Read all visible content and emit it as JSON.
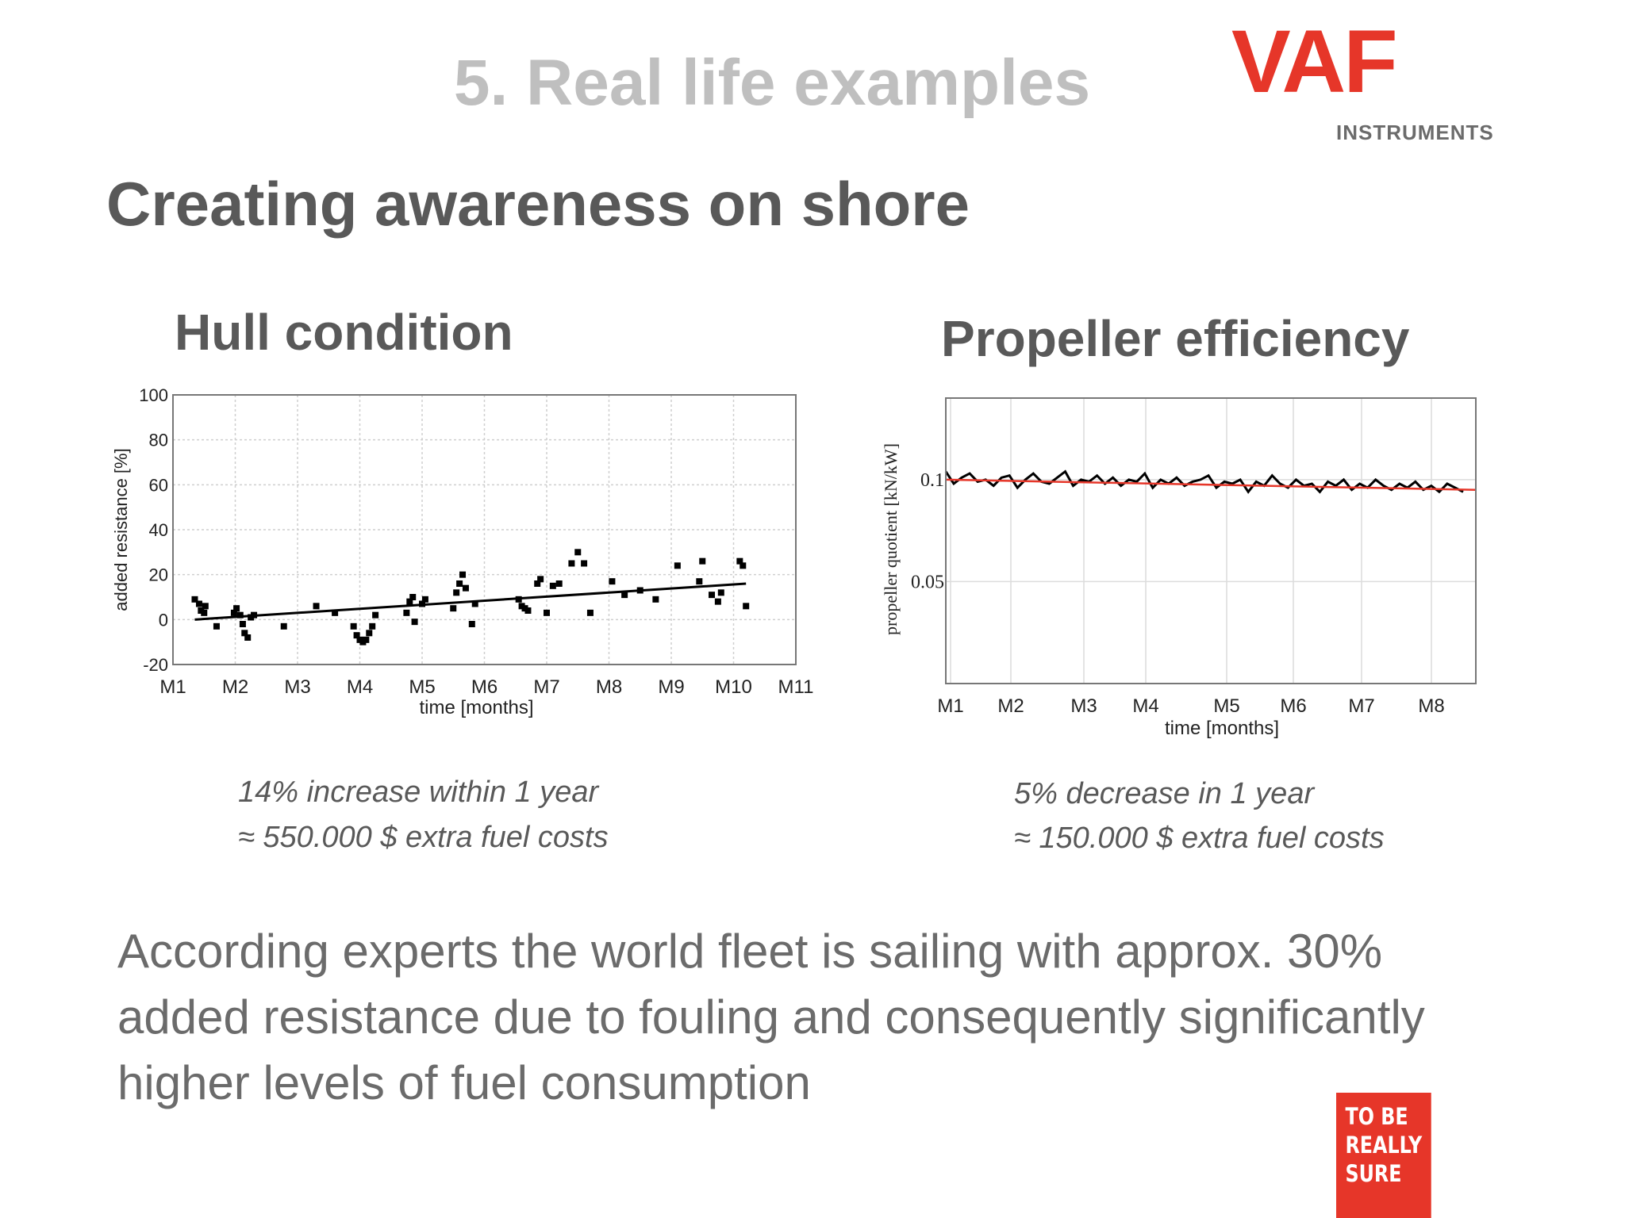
{
  "header": {
    "section_title": "5. Real life examples",
    "logo_name": "VAF",
    "logo_sub": "INSTRUMENTS"
  },
  "slide_title": "Creating awareness on shore",
  "hull": {
    "heading": "Hull condition",
    "caption_line1": "14% increase within 1 year",
    "caption_line2": "≈ 550.000 $ extra fuel costs"
  },
  "propeller": {
    "heading": "Propeller efficiency",
    "caption_line1": "5% decrease in 1 year",
    "caption_line2": "≈ 150.000 $ extra fuel costs"
  },
  "footer_text": "According experts the world fleet is sailing with approx. 30% added resistance due to fouling and consequently significantly higher levels of fuel consumption",
  "badge": {
    "line1": "TO BE",
    "line2": "REALLY",
    "line3": "SURE",
    "color": "#e63629"
  },
  "colors": {
    "accent": "#e63629",
    "text": "#595959",
    "title_grey": "#bfbfbf"
  },
  "chart_data": [
    {
      "type": "scatter",
      "title": "Hull condition",
      "xlabel": "time [months]",
      "ylabel": "added resistance [%]",
      "x_ticks": [
        "M1",
        "M2",
        "M3",
        "M4",
        "M5",
        "M6",
        "M7",
        "M8",
        "M9",
        "M10",
        "M11"
      ],
      "xlim": [
        1,
        11
      ],
      "ylim": [
        -20,
        100
      ],
      "y_ticks": [
        100,
        80,
        60,
        40,
        20,
        0,
        -20
      ],
      "grid": true,
      "trend": {
        "x": [
          1.35,
          10.2
        ],
        "y": [
          0,
          16
        ]
      },
      "points": [
        [
          1.35,
          9
        ],
        [
          1.42,
          7
        ],
        [
          1.45,
          4
        ],
        [
          1.5,
          3
        ],
        [
          1.52,
          6
        ],
        [
          1.7,
          -3
        ],
        [
          1.98,
          3
        ],
        [
          2.02,
          5
        ],
        [
          2.08,
          2
        ],
        [
          2.12,
          -2
        ],
        [
          2.15,
          -6
        ],
        [
          2.2,
          -8
        ],
        [
          2.25,
          1
        ],
        [
          2.3,
          2
        ],
        [
          2.78,
          -3
        ],
        [
          3.3,
          6
        ],
        [
          3.6,
          3
        ],
        [
          3.9,
          -3
        ],
        [
          3.95,
          -7
        ],
        [
          4.0,
          -9
        ],
        [
          4.05,
          -10
        ],
        [
          4.1,
          -9
        ],
        [
          4.15,
          -6
        ],
        [
          4.2,
          -3
        ],
        [
          4.25,
          2
        ],
        [
          4.75,
          3
        ],
        [
          4.8,
          8
        ],
        [
          4.85,
          10
        ],
        [
          4.88,
          -1
        ],
        [
          5.0,
          7
        ],
        [
          5.05,
          9
        ],
        [
          5.5,
          5
        ],
        [
          5.55,
          12
        ],
        [
          5.6,
          16
        ],
        [
          5.65,
          20
        ],
        [
          5.7,
          14
        ],
        [
          5.8,
          -2
        ],
        [
          5.85,
          7
        ],
        [
          6.55,
          9
        ],
        [
          6.6,
          6
        ],
        [
          6.65,
          5
        ],
        [
          6.7,
          4
        ],
        [
          6.85,
          16
        ],
        [
          6.9,
          18
        ],
        [
          7.0,
          3
        ],
        [
          7.1,
          15
        ],
        [
          7.2,
          16
        ],
        [
          7.4,
          25
        ],
        [
          7.5,
          30
        ],
        [
          7.6,
          25
        ],
        [
          7.7,
          3
        ],
        [
          8.05,
          17
        ],
        [
          8.25,
          11
        ],
        [
          8.5,
          13
        ],
        [
          8.75,
          9
        ],
        [
          9.1,
          24
        ],
        [
          9.45,
          17
        ],
        [
          9.5,
          26
        ],
        [
          9.65,
          11
        ],
        [
          9.75,
          8
        ],
        [
          9.8,
          12
        ],
        [
          10.1,
          26
        ],
        [
          10.15,
          24
        ],
        [
          10.2,
          6
        ]
      ]
    },
    {
      "type": "line",
      "title": "Propeller efficiency",
      "xlabel": "time [months]",
      "ylabel": "propeller quotient [kN/kW]",
      "x_ticks": [
        "M1",
        "M2",
        "M3",
        "M4",
        "M5",
        "M6",
        "M7",
        "M8"
      ],
      "y_ticks": [
        0.1,
        0.05
      ],
      "ylim": [
        0,
        0.14
      ],
      "grid": true,
      "trend": {
        "color": "#e63629",
        "start": 0.1,
        "end": 0.095
      },
      "series": [
        {
          "values": [
            0.104,
            0.098,
            0.101,
            0.103,
            0.099,
            0.1,
            0.097,
            0.101,
            0.102,
            0.096,
            0.1,
            0.103,
            0.099,
            0.098,
            0.101,
            0.104,
            0.097,
            0.1,
            0.099,
            0.102,
            0.098,
            0.101,
            0.097,
            0.1,
            0.099,
            0.103,
            0.096,
            0.1,
            0.098,
            0.101,
            0.097,
            0.099,
            0.1,
            0.102,
            0.096,
            0.099,
            0.098,
            0.1,
            0.094,
            0.099,
            0.097,
            0.102,
            0.098,
            0.096,
            0.1,
            0.097,
            0.098,
            0.094,
            0.099,
            0.097,
            0.1,
            0.095,
            0.098,
            0.096,
            0.1,
            0.097,
            0.095,
            0.098,
            0.096,
            0.099,
            0.095,
            0.097,
            0.094,
            0.098,
            0.096,
            0.094
          ]
        }
      ]
    }
  ]
}
